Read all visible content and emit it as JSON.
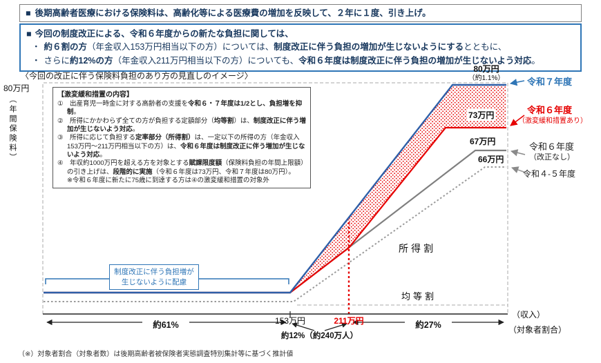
{
  "header": {
    "box1_bullet": "■",
    "box1": [
      {
        "t": "後期高齢者医療における保険料は、高齢化等による医療費の増加を反映して、２年に１度、引き上げ。",
        "b": true
      }
    ],
    "box2_line1_bullet": "■",
    "box2_line1": [
      {
        "t": "今回の制度改正による、令和６年度からの新たな負担に関しては、",
        "b": true
      }
    ],
    "box2_line2_bullet": "・",
    "box2_line2": [
      {
        "t": "約６割の方",
        "b": true
      },
      {
        "t": "（年金収入153万円相当以下の方）については、",
        "b": false
      },
      {
        "t": "制度改正に伴う負担の増加が生じないようにする",
        "b": true
      },
      {
        "t": "とともに、",
        "b": false
      }
    ],
    "box2_line3_bullet": "・",
    "box2_line3": [
      {
        "t": "さらに",
        "b": false
      },
      {
        "t": "約12%の方",
        "b": true
      },
      {
        "t": "（年金収入211万円相当以下の方）についても、",
        "b": false
      },
      {
        "t": "令和６年度は制度改正に伴う負担の増加が生じないよう対応",
        "b": true
      },
      {
        "t": "。",
        "b": false
      }
    ]
  },
  "chart": {
    "title": "〈今回の改正に伴う保険料負担のあり方の見直しのイメージ〉",
    "y_max": "80万円",
    "y_title": "（年間保険料）",
    "mitigation": {
      "title": "【激変緩和措置の内容】",
      "item1": [
        {
          "t": "①　",
          "b": false
        },
        {
          "t": "出産育児一時金に対する高齢者の支援を",
          "b": false
        },
        {
          "t": "令和６・７年度は1/2とし、負担増を抑制",
          "b": true
        },
        {
          "t": "。",
          "b": false
        }
      ],
      "item2": [
        {
          "t": "②　",
          "b": false
        },
        {
          "t": "所得にかかわらず全ての方が負担する定額部分（",
          "b": false
        },
        {
          "t": "均等割",
          "b": true
        },
        {
          "t": "）は、",
          "b": false
        },
        {
          "t": "制度改正に伴う増加が生じないよう対応",
          "b": true
        },
        {
          "t": "。",
          "b": false
        }
      ],
      "item3": [
        {
          "t": "③　",
          "b": false
        },
        {
          "t": "所得に応じて負担する",
          "b": false
        },
        {
          "t": "定率部分（所得割）",
          "b": true
        },
        {
          "t": "は、一定以下の所得の方（年金収入153万円～211万円相当以下の方）は、",
          "b": false
        },
        {
          "t": "令和６年度は制度改正に伴う増加が生じないよう対応",
          "b": true
        },
        {
          "t": "。",
          "b": false
        }
      ],
      "item4": [
        {
          "t": "④　",
          "b": false
        },
        {
          "t": "年収約1000万円を超える方を対象とする",
          "b": false
        },
        {
          "t": "賦課限度額",
          "b": true
        },
        {
          "t": "（保険料負担の年間上限額）の引き上げは、",
          "b": false
        },
        {
          "t": "段階的に実施",
          "b": true
        },
        {
          "t": "（令和６年度は73万円、令和７年度は80万円）。",
          "b": false
        }
      ],
      "note": "※令和６年度に新たに75歳に到達する方は④の激変緩和措置の対象外"
    },
    "caps": {
      "r7": "80万円",
      "r7_share": "（約1.1%）",
      "r6": "73万円",
      "r6_no": "67万円",
      "r45": "66万円"
    },
    "legend": {
      "r7": "令和７年度",
      "r6": "令和６年度",
      "r6_sub": "（激変緩和措置あり）",
      "r6n": "令和６年度",
      "r6n_sub": "（改正なし）",
      "r45": "令和４-５年度"
    },
    "areas": {
      "income": "所得割",
      "flat": "均等割"
    },
    "note_line1": "制度改正に伴う負担増が",
    "note_line2": "生じないように配慮",
    "x": {
      "t153": "153万円",
      "t211": "211万円",
      "p61": "約61%",
      "p12": "約12%（約240万人）",
      "p27": "約27%",
      "income": "（収入）",
      "ratio": "（対象者割合）"
    }
  },
  "footnote": "（※）対象者割合（対象者数）は後期高齢者被保険者実態調査特別集計等に基づく推計値",
  "chart_data": {
    "type": "line",
    "xlabel": "収入",
    "ylabel": "年間保険料",
    "x_thresholds": [
      "153万円",
      "211万円"
    ],
    "population_shares": {
      "below_153": "約61%",
      "153_to_211": "約12%（約240万人）",
      "above_211": "約27%"
    },
    "series": [
      {
        "name": "令和７年度",
        "cap": "80万円",
        "cap_share": "約1.1%",
        "color": "#2e75b6",
        "style": "solid"
      },
      {
        "name": "令和６年度（激変緩和措置あり）",
        "cap": "73万円",
        "color": "#e60000",
        "style": "solid"
      },
      {
        "name": "令和６年度（改正なし）",
        "cap": "67万円",
        "color": "#7f7f7f",
        "style": "solid"
      },
      {
        "name": "令和４-５年度",
        "cap": "66万円",
        "color": "#9a9a9a",
        "style": "dotted"
      }
    ]
  }
}
